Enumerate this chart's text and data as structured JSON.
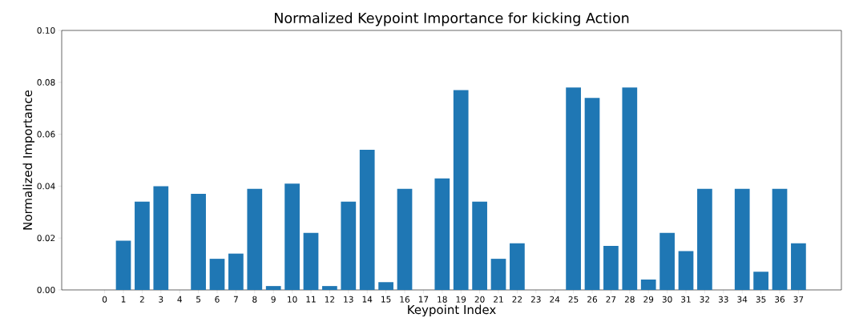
{
  "chart_data": {
    "type": "bar",
    "title": "Normalized Keypoint Importance for kicking Action",
    "xlabel": "Keypoint Index",
    "ylabel": "Normalized Importance",
    "categories": [
      "0",
      "1",
      "2",
      "3",
      "4",
      "5",
      "6",
      "7",
      "8",
      "9",
      "10",
      "11",
      "12",
      "13",
      "14",
      "15",
      "16",
      "17",
      "18",
      "19",
      "20",
      "21",
      "22",
      "23",
      "24",
      "25",
      "26",
      "27",
      "28",
      "29",
      "30",
      "31",
      "32",
      "33",
      "34",
      "35",
      "36",
      "37"
    ],
    "values": [
      0,
      0.019,
      0.034,
      0.04,
      0,
      0.037,
      0.012,
      0.014,
      0.039,
      0.0015,
      0.041,
      0.022,
      0.0015,
      0.034,
      0.054,
      0.003,
      0.039,
      0,
      0.043,
      0.077,
      0.034,
      0.012,
      0.018,
      0,
      0,
      0.078,
      0.074,
      0.017,
      0.078,
      0.004,
      0.022,
      0.015,
      0.039,
      0,
      0.039,
      0.007,
      0.039,
      0.018
    ],
    "color": "#1f77b4",
    "ylim": [
      0,
      0.1
    ],
    "yticks": [
      {
        "value": 0,
        "label": "0.00"
      },
      {
        "value": 0.02,
        "label": "0.02"
      },
      {
        "value": 0.04,
        "label": "0.04"
      },
      {
        "value": 0.06,
        "label": "0.06"
      },
      {
        "value": 0.08,
        "label": "0.08"
      },
      {
        "value": 0.1,
        "label": "0.10"
      }
    ],
    "grid": false
  }
}
